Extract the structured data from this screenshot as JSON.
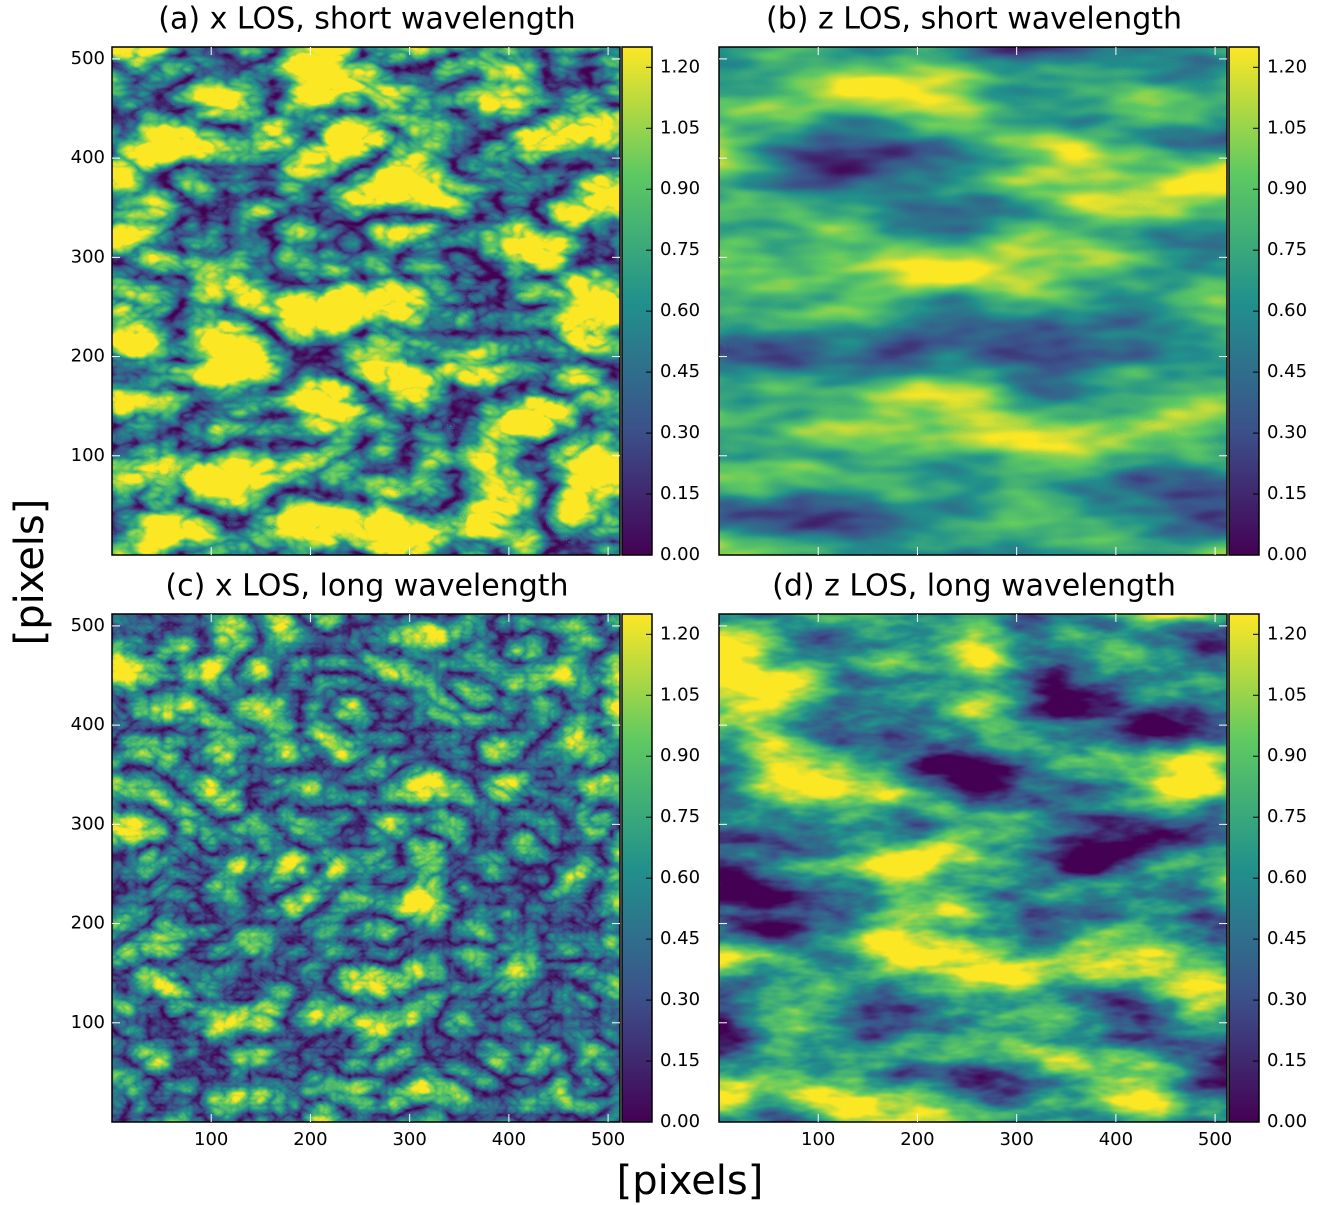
{
  "figure": {
    "xlabel": "[pixels]",
    "ylabel": "[pixels]"
  },
  "chart_data": [
    {
      "type": "heatmap",
      "title": "(a) x LOS, short wavelength",
      "colormap": "viridis",
      "xlim": [
        0,
        512
      ],
      "ylim": [
        0,
        512
      ],
      "xticks": [
        100,
        200,
        300,
        400,
        500
      ],
      "yticks": [
        100,
        200,
        300,
        400,
        500
      ],
      "clim": [
        0,
        1.25
      ],
      "cticks": [
        {
          "value": 0,
          "label": "0.00"
        },
        {
          "value": 0.15,
          "label": "0.15"
        },
        {
          "value": 0.3,
          "label": "0.30"
        },
        {
          "value": 0.45,
          "label": "0.45"
        },
        {
          "value": 0.6,
          "label": "0.60"
        },
        {
          "value": 0.75,
          "label": "0.75"
        },
        {
          "value": 0.9,
          "label": "0.90"
        },
        {
          "value": 1.05,
          "label": "1.05"
        },
        {
          "value": 1.2,
          "label": "1.20"
        }
      ]
    },
    {
      "type": "heatmap",
      "title": "(b) z LOS, short wavelength",
      "colormap": "viridis",
      "xlim": [
        0,
        512
      ],
      "ylim": [
        0,
        512
      ],
      "xticks": [
        100,
        200,
        300,
        400,
        500
      ],
      "yticks": [
        100,
        200,
        300,
        400,
        500
      ],
      "clim": [
        0,
        1.25
      ],
      "cticks": [
        {
          "value": 0,
          "label": "0.00"
        },
        {
          "value": 0.15,
          "label": "0.15"
        },
        {
          "value": 0.3,
          "label": "0.30"
        },
        {
          "value": 0.45,
          "label": "0.45"
        },
        {
          "value": 0.6,
          "label": "0.60"
        },
        {
          "value": 0.75,
          "label": "0.75"
        },
        {
          "value": 0.9,
          "label": "0.90"
        },
        {
          "value": 1.05,
          "label": "1.05"
        },
        {
          "value": 1.2,
          "label": "1.20"
        }
      ]
    },
    {
      "type": "heatmap",
      "title": "(c) x LOS, long wavelength",
      "colormap": "viridis",
      "xlim": [
        0,
        512
      ],
      "ylim": [
        0,
        512
      ],
      "xticks": [
        100,
        200,
        300,
        400,
        500
      ],
      "yticks": [
        100,
        200,
        300,
        400,
        500
      ],
      "clim": [
        0,
        1.25
      ],
      "cticks": [
        {
          "value": 0,
          "label": "0.00"
        },
        {
          "value": 0.15,
          "label": "0.15"
        },
        {
          "value": 0.3,
          "label": "0.30"
        },
        {
          "value": 0.45,
          "label": "0.45"
        },
        {
          "value": 0.6,
          "label": "0.60"
        },
        {
          "value": 0.75,
          "label": "0.75"
        },
        {
          "value": 0.9,
          "label": "0.90"
        },
        {
          "value": 1.05,
          "label": "1.05"
        },
        {
          "value": 1.2,
          "label": "1.20"
        }
      ]
    },
    {
      "type": "heatmap",
      "title": "(d) z LOS, long wavelength",
      "colormap": "viridis",
      "xlim": [
        0,
        512
      ],
      "ylim": [
        0,
        512
      ],
      "xticks": [
        100,
        200,
        300,
        400,
        500
      ],
      "yticks": [
        100,
        200,
        300,
        400,
        500
      ],
      "clim": [
        0,
        1.25
      ],
      "cticks": [
        {
          "value": 0,
          "label": "0.00"
        },
        {
          "value": 0.15,
          "label": "0.15"
        },
        {
          "value": 0.3,
          "label": "0.30"
        },
        {
          "value": 0.45,
          "label": "0.45"
        },
        {
          "value": 0.6,
          "label": "0.60"
        },
        {
          "value": 0.75,
          "label": "0.75"
        },
        {
          "value": 0.9,
          "label": "0.90"
        },
        {
          "value": 1.05,
          "label": "1.05"
        },
        {
          "value": 1.2,
          "label": "1.20"
        }
      ]
    }
  ]
}
